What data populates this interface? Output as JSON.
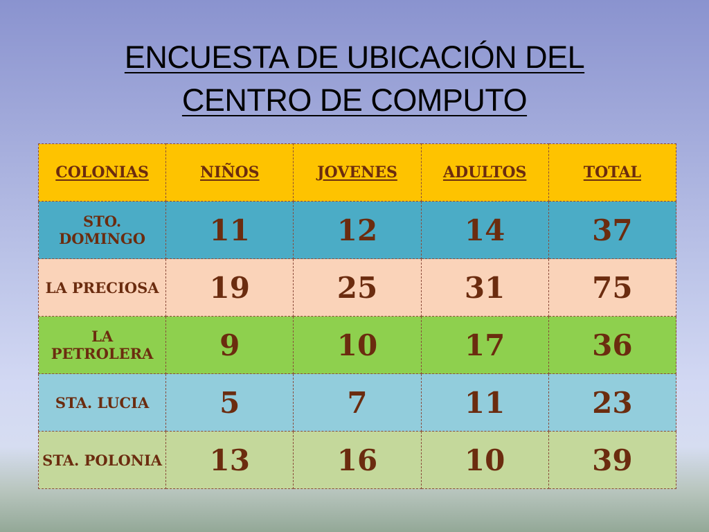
{
  "slide": {
    "title_line1": "ENCUESTA DE UBICACIÓN DEL",
    "title_line2": "CENTRO DE COMPUTO"
  },
  "table": {
    "headers": [
      "COLONIAS",
      "NIÑOS",
      "JOVENES",
      "ADULTOS",
      "TOTAL"
    ],
    "rows": [
      [
        "STO. DOMINGO",
        "11",
        "12",
        "14",
        "37"
      ],
      [
        "LA PRECIOSA",
        "19",
        "25",
        "31",
        "75"
      ],
      [
        "LA PETROLERA",
        "9",
        "10",
        "17",
        "36"
      ],
      [
        "STA. LUCIA",
        "5",
        "7",
        "11",
        "23"
      ],
      [
        "STA. POLONIA",
        "13",
        "16",
        "10",
        "39"
      ]
    ],
    "row_colors": [
      "#4bacc6",
      "#fad3b9",
      "#8ed04e",
      "#92cddc",
      "#c4d89b"
    ],
    "header_color": "#fec300"
  }
}
